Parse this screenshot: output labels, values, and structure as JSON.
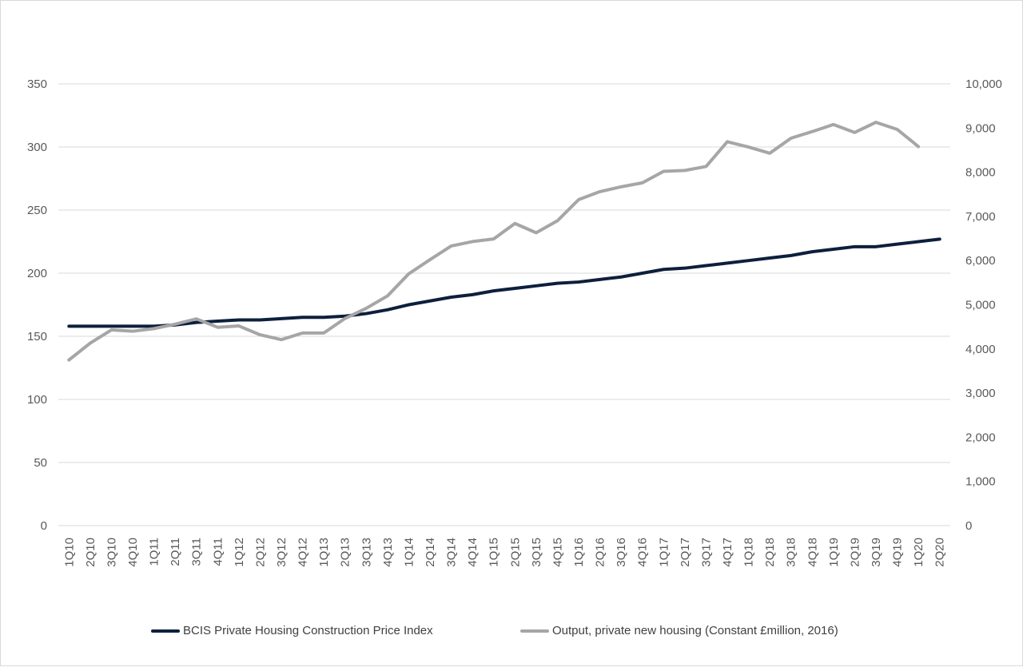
{
  "chart_data": {
    "type": "line",
    "categories": [
      "1Q10",
      "2Q10",
      "3Q10",
      "4Q10",
      "1Q11",
      "2Q11",
      "3Q11",
      "4Q11",
      "1Q12",
      "2Q12",
      "3Q12",
      "4Q12",
      "1Q13",
      "2Q13",
      "3Q13",
      "4Q13",
      "1Q14",
      "2Q14",
      "3Q14",
      "4Q14",
      "1Q15",
      "2Q15",
      "3Q15",
      "4Q15",
      "1Q16",
      "2Q16",
      "3Q16",
      "4Q16",
      "1Q17",
      "2Q17",
      "3Q17",
      "4Q17",
      "1Q18",
      "2Q18",
      "3Q18",
      "4Q18",
      "1Q19",
      "2Q19",
      "3Q19",
      "4Q19",
      "1Q20",
      "2Q20"
    ],
    "series": [
      {
        "name": "BCIS Private Housing Construction Price Index",
        "axis": "left",
        "color": "#0d1f3c",
        "values": [
          158,
          158,
          158,
          158,
          158,
          159,
          161,
          162,
          163,
          163,
          164,
          165,
          165,
          166,
          168,
          171,
          175,
          178,
          181,
          183,
          186,
          188,
          190,
          192,
          193,
          195,
          197,
          200,
          203,
          204,
          206,
          208,
          210,
          212,
          214,
          217,
          219,
          221,
          221,
          223,
          225,
          227
        ]
      },
      {
        "name": "Output, private new housing (Constant £million, 2016)",
        "axis": "right",
        "color": "#a6a6a6",
        "values": [
          3750,
          4130,
          4430,
          4400,
          4460,
          4560,
          4680,
          4490,
          4520,
          4320,
          4210,
          4360,
          4360,
          4690,
          4920,
          5200,
          5700,
          6020,
          6330,
          6430,
          6490,
          6840,
          6630,
          6900,
          7380,
          7560,
          7670,
          7760,
          8020,
          8040,
          8130,
          8690,
          8570,
          8430,
          8770,
          8920,
          9080,
          8900,
          9130,
          8970,
          8580,
          null
        ]
      }
    ],
    "yaxis_left": {
      "ticks": [
        "0",
        "50",
        "100",
        "150",
        "200",
        "250",
        "300",
        "350"
      ],
      "min": 0,
      "max": 350
    },
    "yaxis_right": {
      "ticks": [
        "0",
        "1,000",
        "2,000",
        "3,000",
        "4,000",
        "5,000",
        "6,000",
        "7,000",
        "8,000",
        "9,000",
        "10,000"
      ],
      "min": 0,
      "max": 10000
    },
    "grid": true,
    "legend_position": "bottom"
  }
}
